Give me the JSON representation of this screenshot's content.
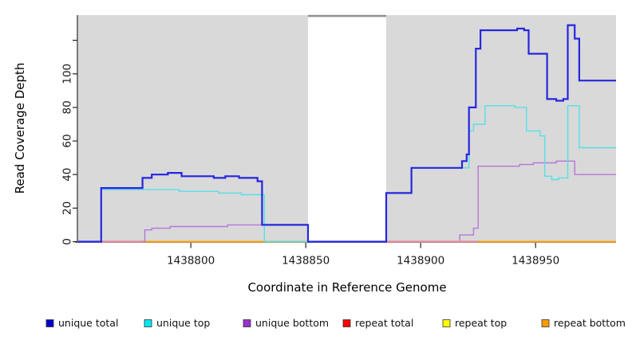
{
  "chart_data": {
    "type": "line",
    "subtype": "step-coverage",
    "title": "",
    "xlabel": "Coordinate in Reference Genome",
    "ylabel": "Read Coverage Depth",
    "xlim": [
      1438751,
      1438985
    ],
    "ylim": [
      0,
      135
    ],
    "x_ticks": [
      1438800,
      1438850,
      1438900,
      1438950
    ],
    "y_ticks": [
      0,
      20,
      40,
      60,
      80,
      100
    ],
    "y_ticks_unlabeled": [
      120
    ],
    "grid": false,
    "panel_bg": "#d9d9d9",
    "gap": {
      "x0": 1438851,
      "x1": 1438885,
      "fill": "#ffffff",
      "top_border": "#8f8f8f"
    },
    "legend_position": "bottom",
    "series": [
      {
        "name": "unique total",
        "color": "#2626e0",
        "width": 2.2,
        "points": [
          [
            1438751,
            0
          ],
          [
            1438761,
            32
          ],
          [
            1438779,
            38
          ],
          [
            1438783,
            40
          ],
          [
            1438790,
            41
          ],
          [
            1438796,
            39
          ],
          [
            1438810,
            38
          ],
          [
            1438815,
            39
          ],
          [
            1438821,
            38
          ],
          [
            1438829,
            36
          ],
          [
            1438831,
            10
          ],
          [
            1438851,
            0
          ],
          [
            1438885,
            29
          ],
          [
            1438896,
            44
          ],
          [
            1438918,
            48
          ],
          [
            1438920,
            52
          ],
          [
            1438921,
            80
          ],
          [
            1438924,
            115
          ],
          [
            1438926,
            126
          ],
          [
            1438942,
            127
          ],
          [
            1438945,
            126
          ],
          [
            1438947,
            112
          ],
          [
            1438955,
            85
          ],
          [
            1438959,
            84
          ],
          [
            1438962,
            85
          ],
          [
            1438964,
            129
          ],
          [
            1438967,
            121
          ],
          [
            1438969,
            96
          ],
          [
            1438985,
            96
          ]
        ]
      },
      {
        "name": "unique top",
        "color": "#55e0e6",
        "width": 1.4,
        "points": [
          [
            1438751,
            0
          ],
          [
            1438761,
            31
          ],
          [
            1438795,
            30
          ],
          [
            1438812,
            29
          ],
          [
            1438822,
            28
          ],
          [
            1438832,
            0
          ],
          [
            1438885,
            29
          ],
          [
            1438896,
            44
          ],
          [
            1438921,
            66
          ],
          [
            1438923,
            70
          ],
          [
            1438928,
            81
          ],
          [
            1438941,
            80
          ],
          [
            1438946,
            66
          ],
          [
            1438952,
            63
          ],
          [
            1438954,
            39
          ],
          [
            1438957,
            37
          ],
          [
            1438960,
            38
          ],
          [
            1438964,
            81
          ],
          [
            1438969,
            56
          ],
          [
            1438985,
            56
          ]
        ]
      },
      {
        "name": "unique bottom",
        "color": "#b577d9",
        "width": 1.4,
        "points": [
          [
            1438751,
            0
          ],
          [
            1438780,
            7
          ],
          [
            1438783,
            8
          ],
          [
            1438791,
            9
          ],
          [
            1438816,
            10
          ],
          [
            1438851,
            0
          ],
          [
            1438917,
            4
          ],
          [
            1438923,
            8
          ],
          [
            1438925,
            45
          ],
          [
            1438943,
            46
          ],
          [
            1438949,
            47
          ],
          [
            1438959,
            48
          ],
          [
            1438967,
            40
          ],
          [
            1438985,
            40
          ]
        ]
      },
      {
        "name": "repeat total",
        "color": "#e00000",
        "width": 1.4,
        "points": [
          [
            1438751,
            0
          ],
          [
            1438985,
            0
          ]
        ]
      },
      {
        "name": "repeat top",
        "color": "#f0f000",
        "width": 1.4,
        "points": [
          [
            1438751,
            0
          ],
          [
            1438985,
            0
          ]
        ]
      },
      {
        "name": "repeat bottom",
        "color": "#ff9d00",
        "width": 1.8,
        "points": [
          [
            1438751,
            0
          ],
          [
            1438985,
            0
          ]
        ]
      }
    ],
    "baseline_overlays": [
      {
        "x0": 1438761,
        "x1": 1438779,
        "color": "#e589a2"
      },
      {
        "x0": 1438885,
        "x1": 1438925,
        "color": "#e589a2"
      }
    ],
    "legend": [
      {
        "label": "unique total",
        "color": "#0000cc"
      },
      {
        "label": "unique top",
        "color": "#00e8f0"
      },
      {
        "label": "unique bottom",
        "color": "#9932cc"
      },
      {
        "label": "repeat total",
        "color": "#ff0000"
      },
      {
        "label": "repeat top",
        "color": "#ffff00"
      },
      {
        "label": "repeat bottom",
        "color": "#ff9d00"
      }
    ]
  }
}
